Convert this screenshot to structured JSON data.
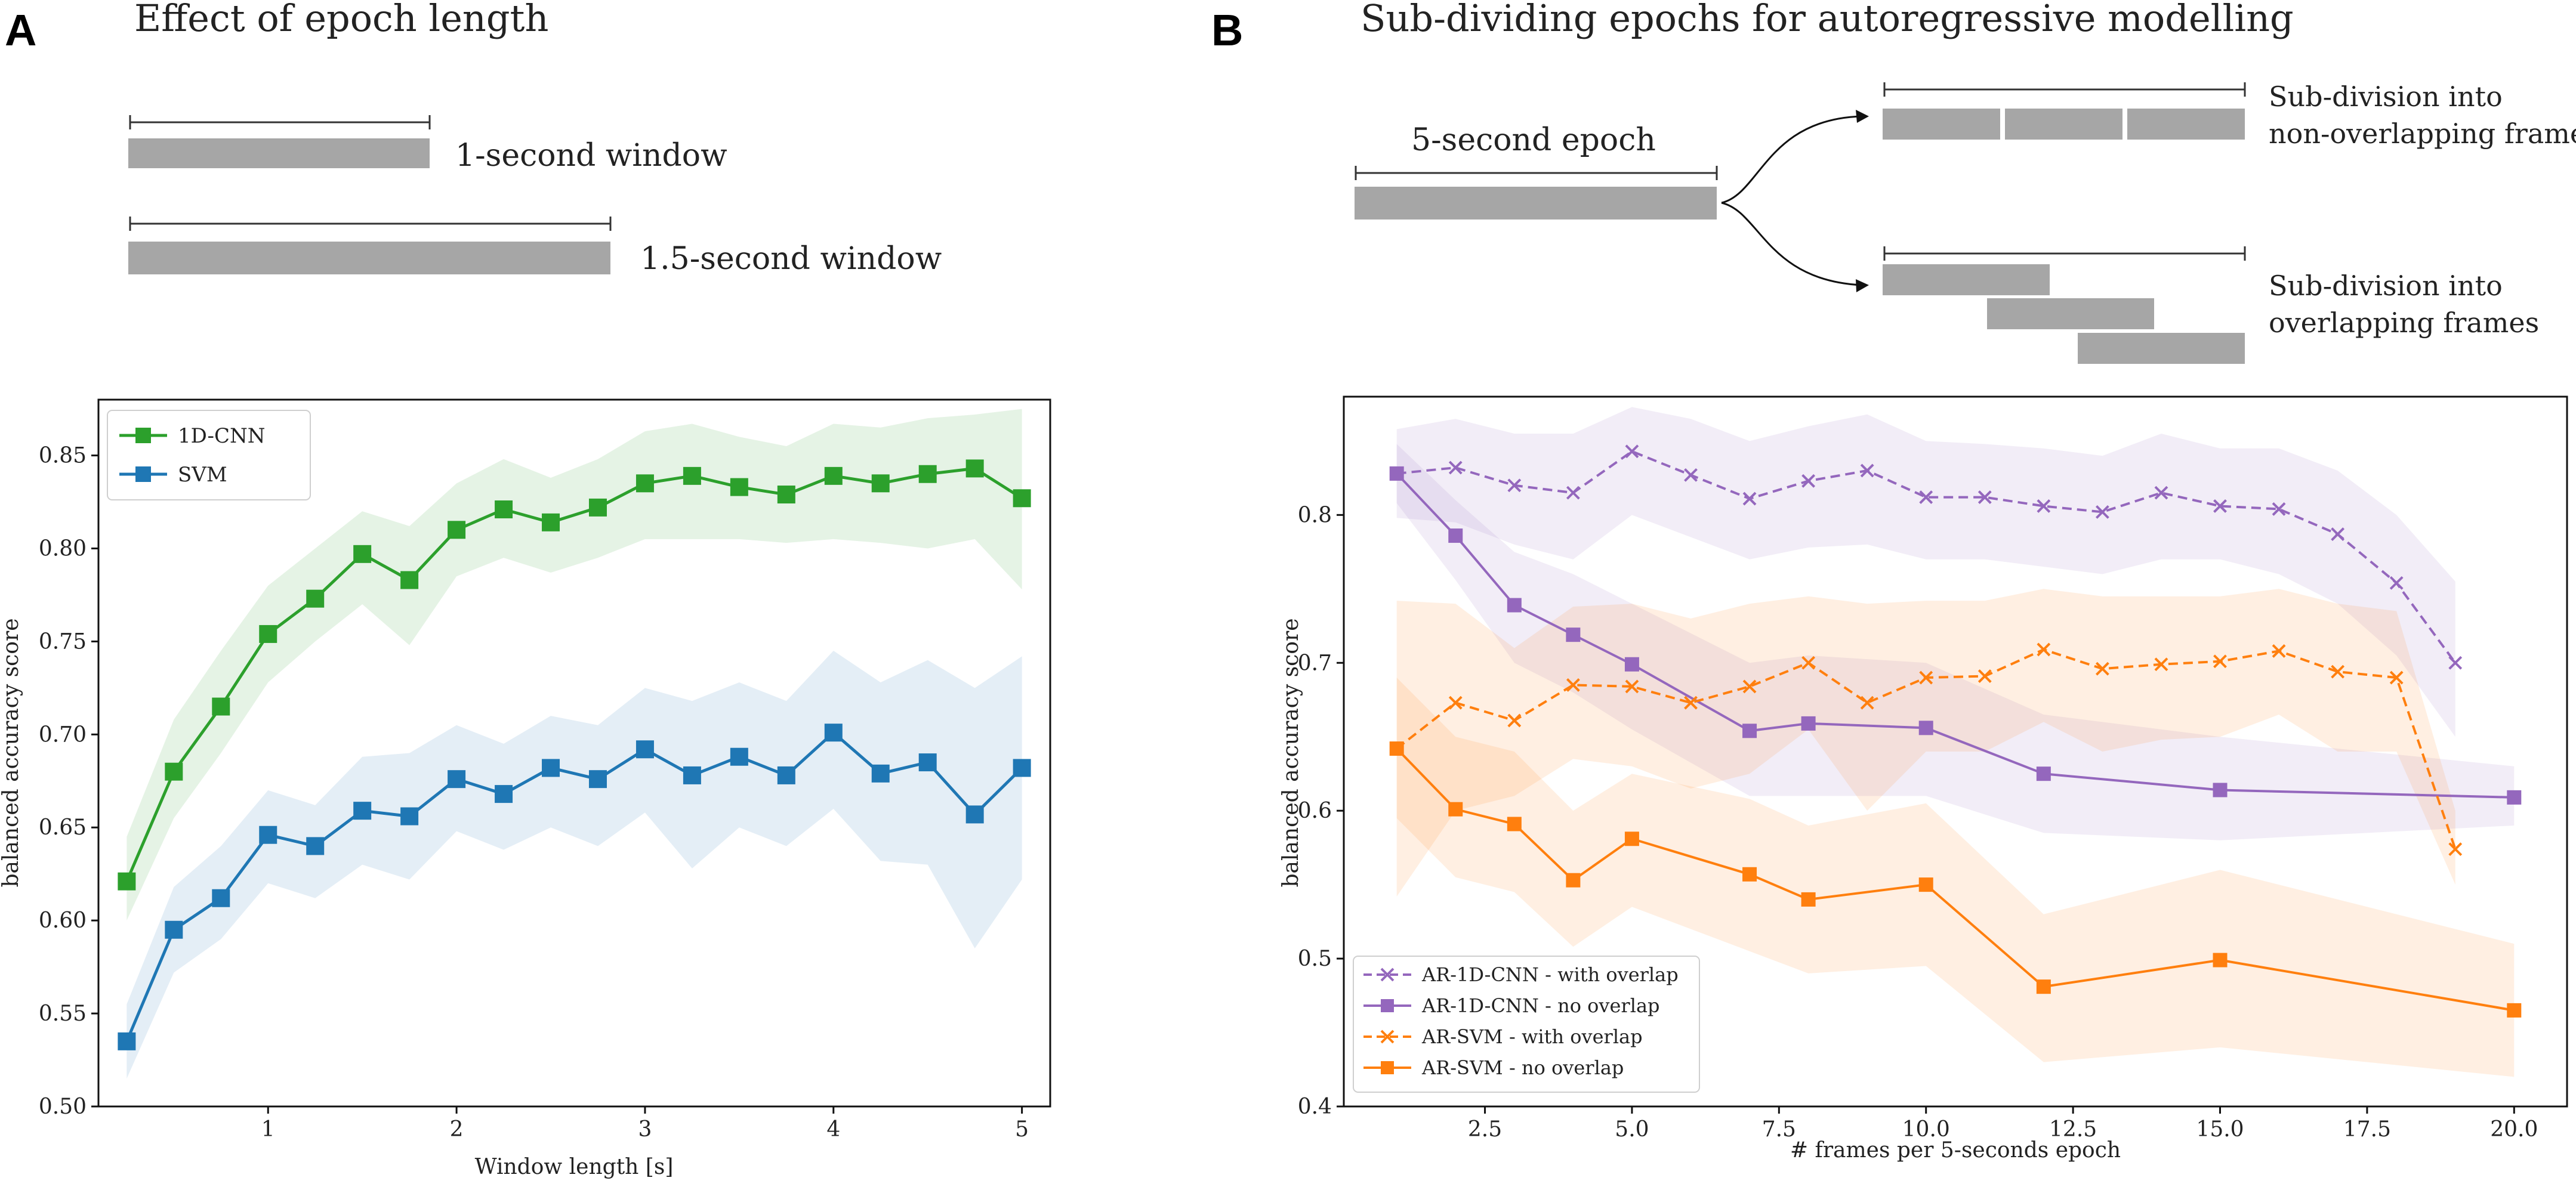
{
  "panel_a": {
    "letter": "A",
    "title": "Effect of epoch length",
    "windows": [
      {
        "label": "1-second window",
        "seconds": 1.0
      },
      {
        "label": "1.5-second window",
        "seconds": 1.5
      }
    ]
  },
  "panel_b": {
    "letter": "B",
    "title": "Sub-dividing epochs for autoregressive modelling",
    "epoch_label": "5-second epoch",
    "non_overlap_label_1": "Sub-division into",
    "non_overlap_label_2": "non-overlapping frames",
    "overlap_label_1": "Sub-division into",
    "overlap_label_2": "overlapping frames"
  },
  "colors": {
    "green": "#2ca02c",
    "blue": "#1f77b4",
    "purple": "#9467bd",
    "orange": "#ff7f0e",
    "schematic_bar": "#a6a6a6"
  },
  "chart_data": [
    {
      "type": "line",
      "xlabel": "Window length [s]",
      "ylabel": "balanced accuracy score",
      "xlim": [
        0.1,
        5.15
      ],
      "ylim": [
        0.5,
        0.88
      ],
      "xticks": [
        1,
        2,
        3,
        4,
        5
      ],
      "xtick_labels": [
        "1",
        "2",
        "3",
        "4",
        "5"
      ],
      "yticks": [
        0.5,
        0.55,
        0.6,
        0.65,
        0.7,
        0.75,
        0.8,
        0.85
      ],
      "ytick_labels": [
        "0.50",
        "0.55",
        "0.60",
        "0.65",
        "0.70",
        "0.75",
        "0.80",
        "0.85"
      ],
      "legend_position": "top-left",
      "series": [
        {
          "name": "1D-CNN",
          "color_key": "green",
          "dashed": false,
          "marker": "square",
          "x": [
            0.25,
            0.5,
            0.75,
            1.0,
            1.25,
            1.5,
            1.75,
            2.0,
            2.25,
            2.5,
            2.75,
            3.0,
            3.25,
            3.5,
            3.75,
            4.0,
            4.25,
            4.5,
            4.75,
            5.0
          ],
          "y": [
            0.621,
            0.68,
            0.715,
            0.754,
            0.773,
            0.797,
            0.783,
            0.81,
            0.821,
            0.814,
            0.822,
            0.835,
            0.839,
            0.833,
            0.829,
            0.839,
            0.835,
            0.84,
            0.843,
            0.827
          ],
          "lower": [
            0.6,
            0.655,
            0.69,
            0.728,
            0.75,
            0.77,
            0.748,
            0.785,
            0.795,
            0.787,
            0.795,
            0.805,
            0.805,
            0.805,
            0.803,
            0.805,
            0.803,
            0.8,
            0.805,
            0.778
          ],
          "upper": [
            0.645,
            0.708,
            0.745,
            0.78,
            0.8,
            0.82,
            0.812,
            0.835,
            0.848,
            0.838,
            0.848,
            0.863,
            0.867,
            0.86,
            0.855,
            0.867,
            0.865,
            0.87,
            0.872,
            0.875
          ]
        },
        {
          "name": "SVM",
          "color_key": "blue",
          "dashed": false,
          "marker": "square",
          "x": [
            0.25,
            0.5,
            0.75,
            1.0,
            1.25,
            1.5,
            1.75,
            2.0,
            2.25,
            2.5,
            2.75,
            3.0,
            3.25,
            3.5,
            3.75,
            4.0,
            4.25,
            4.5,
            4.75,
            5.0
          ],
          "y": [
            0.535,
            0.595,
            0.612,
            0.646,
            0.64,
            0.659,
            0.656,
            0.676,
            0.668,
            0.682,
            0.676,
            0.692,
            0.678,
            0.688,
            0.678,
            0.701,
            0.679,
            0.685,
            0.657,
            0.682
          ],
          "lower": [
            0.515,
            0.572,
            0.59,
            0.62,
            0.612,
            0.63,
            0.622,
            0.648,
            0.638,
            0.65,
            0.64,
            0.658,
            0.628,
            0.65,
            0.64,
            0.66,
            0.632,
            0.63,
            0.585,
            0.622
          ],
          "upper": [
            0.555,
            0.618,
            0.64,
            0.67,
            0.662,
            0.688,
            0.69,
            0.705,
            0.695,
            0.71,
            0.705,
            0.725,
            0.718,
            0.728,
            0.718,
            0.745,
            0.728,
            0.74,
            0.725,
            0.742
          ]
        }
      ]
    },
    {
      "type": "line",
      "xlabel": "# frames per 5-seconds epoch",
      "ylabel": "balanced accuracy score",
      "xlim": [
        0.1,
        20.9
      ],
      "ylim": [
        0.4,
        0.88
      ],
      "xticks": [
        2.5,
        5.0,
        7.5,
        10.0,
        12.5,
        15.0,
        17.5,
        20.0
      ],
      "xtick_labels": [
        "2.5",
        "5.0",
        "7.5",
        "10.0",
        "12.5",
        "15.0",
        "17.5",
        "20.0"
      ],
      "yticks": [
        0.4,
        0.5,
        0.6,
        0.7,
        0.8
      ],
      "ytick_labels": [
        "0.4",
        "0.5",
        "0.6",
        "0.7",
        "0.8"
      ],
      "legend_position": "bottom-left",
      "series": [
        {
          "name": "AR-1D-CNN - with overlap",
          "color_key": "purple",
          "dashed": true,
          "marker": "x",
          "x": [
            1,
            2,
            3,
            4,
            5,
            6,
            7,
            8,
            9,
            10,
            11,
            12,
            13,
            14,
            15,
            16,
            17,
            18,
            19
          ],
          "y": [
            0.828,
            0.832,
            0.82,
            0.815,
            0.843,
            0.827,
            0.811,
            0.823,
            0.83,
            0.812,
            0.812,
            0.806,
            0.802,
            0.815,
            0.806,
            0.804,
            0.787,
            0.754,
            0.7
          ],
          "lower": [
            0.798,
            0.795,
            0.78,
            0.77,
            0.8,
            0.785,
            0.77,
            0.778,
            0.78,
            0.77,
            0.77,
            0.765,
            0.76,
            0.77,
            0.77,
            0.76,
            0.74,
            0.705,
            0.65
          ],
          "upper": [
            0.858,
            0.865,
            0.855,
            0.855,
            0.873,
            0.865,
            0.85,
            0.86,
            0.868,
            0.85,
            0.848,
            0.845,
            0.84,
            0.855,
            0.845,
            0.845,
            0.83,
            0.8,
            0.755
          ]
        },
        {
          "name": "AR-1D-CNN - no overlap",
          "color_key": "purple",
          "dashed": false,
          "marker": "square",
          "x": [
            1,
            2,
            3,
            4,
            5,
            7,
            8,
            10,
            12,
            15,
            20
          ],
          "y": [
            0.828,
            0.786,
            0.739,
            0.719,
            0.699,
            0.654,
            0.659,
            0.656,
            0.625,
            0.614,
            0.609
          ],
          "lower": [
            0.808,
            0.756,
            0.7,
            0.68,
            0.655,
            0.61,
            0.61,
            0.61,
            0.585,
            0.58,
            0.59
          ],
          "upper": [
            0.848,
            0.81,
            0.775,
            0.76,
            0.74,
            0.7,
            0.705,
            0.7,
            0.665,
            0.65,
            0.63
          ]
        },
        {
          "name": "AR-SVM - with overlap",
          "color_key": "orange",
          "dashed": true,
          "marker": "x",
          "x": [
            1,
            2,
            3,
            4,
            5,
            6,
            7,
            8,
            9,
            10,
            11,
            12,
            13,
            14,
            15,
            16,
            17,
            18,
            19
          ],
          "y": [
            0.642,
            0.673,
            0.661,
            0.685,
            0.684,
            0.673,
            0.684,
            0.7,
            0.673,
            0.69,
            0.691,
            0.709,
            0.696,
            0.699,
            0.701,
            0.708,
            0.694,
            0.69,
            0.574
          ],
          "lower": [
            0.542,
            0.6,
            0.61,
            0.635,
            0.63,
            0.615,
            0.625,
            0.655,
            0.6,
            0.64,
            0.64,
            0.66,
            0.64,
            0.648,
            0.65,
            0.665,
            0.64,
            0.64,
            0.55
          ],
          "upper": [
            0.742,
            0.74,
            0.71,
            0.738,
            0.74,
            0.73,
            0.74,
            0.745,
            0.74,
            0.742,
            0.742,
            0.75,
            0.745,
            0.745,
            0.745,
            0.75,
            0.74,
            0.735,
            0.6
          ]
        },
        {
          "name": "AR-SVM - no overlap",
          "color_key": "orange",
          "dashed": false,
          "marker": "square",
          "x": [
            1,
            2,
            3,
            4,
            5,
            7,
            8,
            10,
            12,
            15,
            20
          ],
          "y": [
            0.642,
            0.601,
            0.591,
            0.553,
            0.581,
            0.557,
            0.54,
            0.55,
            0.481,
            0.499,
            0.465
          ],
          "lower": [
            0.595,
            0.555,
            0.545,
            0.508,
            0.535,
            0.505,
            0.49,
            0.495,
            0.43,
            0.44,
            0.42
          ],
          "upper": [
            0.69,
            0.65,
            0.64,
            0.6,
            0.625,
            0.608,
            0.59,
            0.605,
            0.53,
            0.56,
            0.51
          ]
        }
      ]
    }
  ]
}
